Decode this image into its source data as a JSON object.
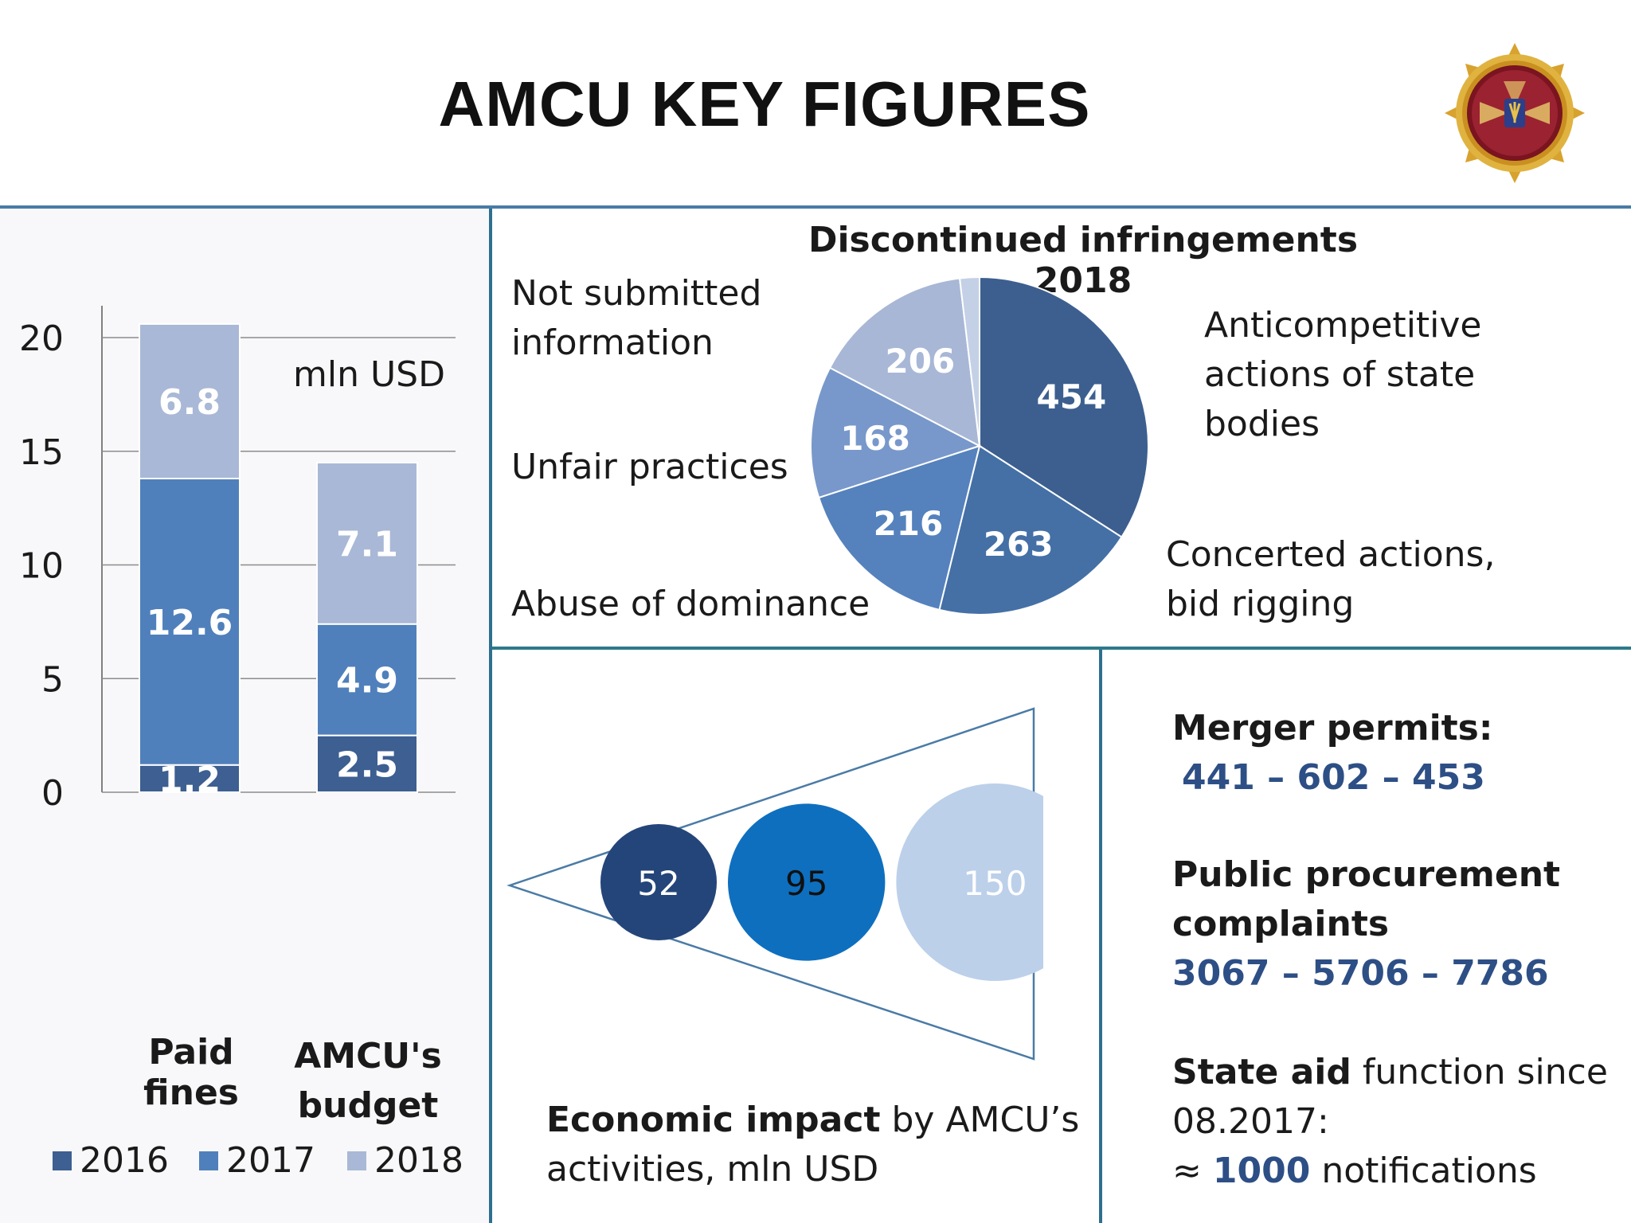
{
  "title": "AMCU KEY FIGURES",
  "colors": {
    "c2016": "#3d5f91",
    "c2017": "#5080bb",
    "c2018": "#a9b8d6",
    "pie_dark": "#3c5f8f",
    "divider": "#4a7ba6"
  },
  "emblem_icon": "amcu-emblem",
  "bar_chart": {
    "chart_data": {
      "type": "bar",
      "stacked": true,
      "unit_note": "mln USD",
      "categories": [
        "Paid fines",
        "AMCU's budget"
      ],
      "series": [
        {
          "name": "2016",
          "values": [
            1.2,
            2.5
          ]
        },
        {
          "name": "2017",
          "values": [
            12.6,
            4.9
          ]
        },
        {
          "name": "2018",
          "values": [
            6.8,
            7.1
          ]
        }
      ],
      "ylim": [
        0,
        20
      ],
      "yticks": [
        "0",
        "5",
        "10",
        "15",
        "20"
      ],
      "grid": true,
      "legend": "bottom"
    }
  },
  "pie_chart": {
    "chart_data": {
      "type": "pie",
      "title": "Discontinued infringements 2018",
      "slices": [
        {
          "label": "Anticompetitive actions of state bodies",
          "value": 454,
          "color": "#3c5f8f"
        },
        {
          "label": "Concerted actions, bid rigging",
          "value": 263,
          "color": "#4470a6"
        },
        {
          "label": "Abuse of dominance",
          "value": 216,
          "color": "#5582bd"
        },
        {
          "label": "Unfair practices",
          "value": 168,
          "color": "#7898cb"
        },
        {
          "label": "Not submitted information",
          "value": 206,
          "color": "#a8b7d6"
        },
        {
          "label": "",
          "value": 25,
          "color": "#c4d0e6"
        }
      ]
    },
    "labels": {
      "not_submitted": [
        "Not submitted",
        "information"
      ],
      "unfair": "Unfair practices",
      "abuse": "Abuse of dominance",
      "anticompetitive": [
        "Anticompetitive",
        "actions of state",
        "bodies"
      ],
      "concerted": [
        "Concerted actions,",
        "bid rigging"
      ]
    }
  },
  "economic_impact": {
    "chart_data": {
      "type": "bubble",
      "values": [
        52,
        95,
        150
      ],
      "colors": [
        "#24457a",
        "#0e6fbf",
        "#bcd0ea"
      ]
    },
    "caption_bold": "Economic impact",
    "caption_rest": " by AMCU’s",
    "caption_line2": "activities, mln USD"
  },
  "stats": {
    "merger_label": "Merger permits:",
    "merger_values": "441 – 602 – 453",
    "procurement_label_1": "Public procurement",
    "procurement_label_2": "complaints",
    "procurement_values": "3067 – 5706 – 7786",
    "stateaid_bold": "State aid",
    "stateaid_rest": " function since",
    "stateaid_date": "08.2017:",
    "stateaid_approx": "≈ ",
    "stateaid_count": "1000",
    "stateaid_suffix": " notifications"
  }
}
